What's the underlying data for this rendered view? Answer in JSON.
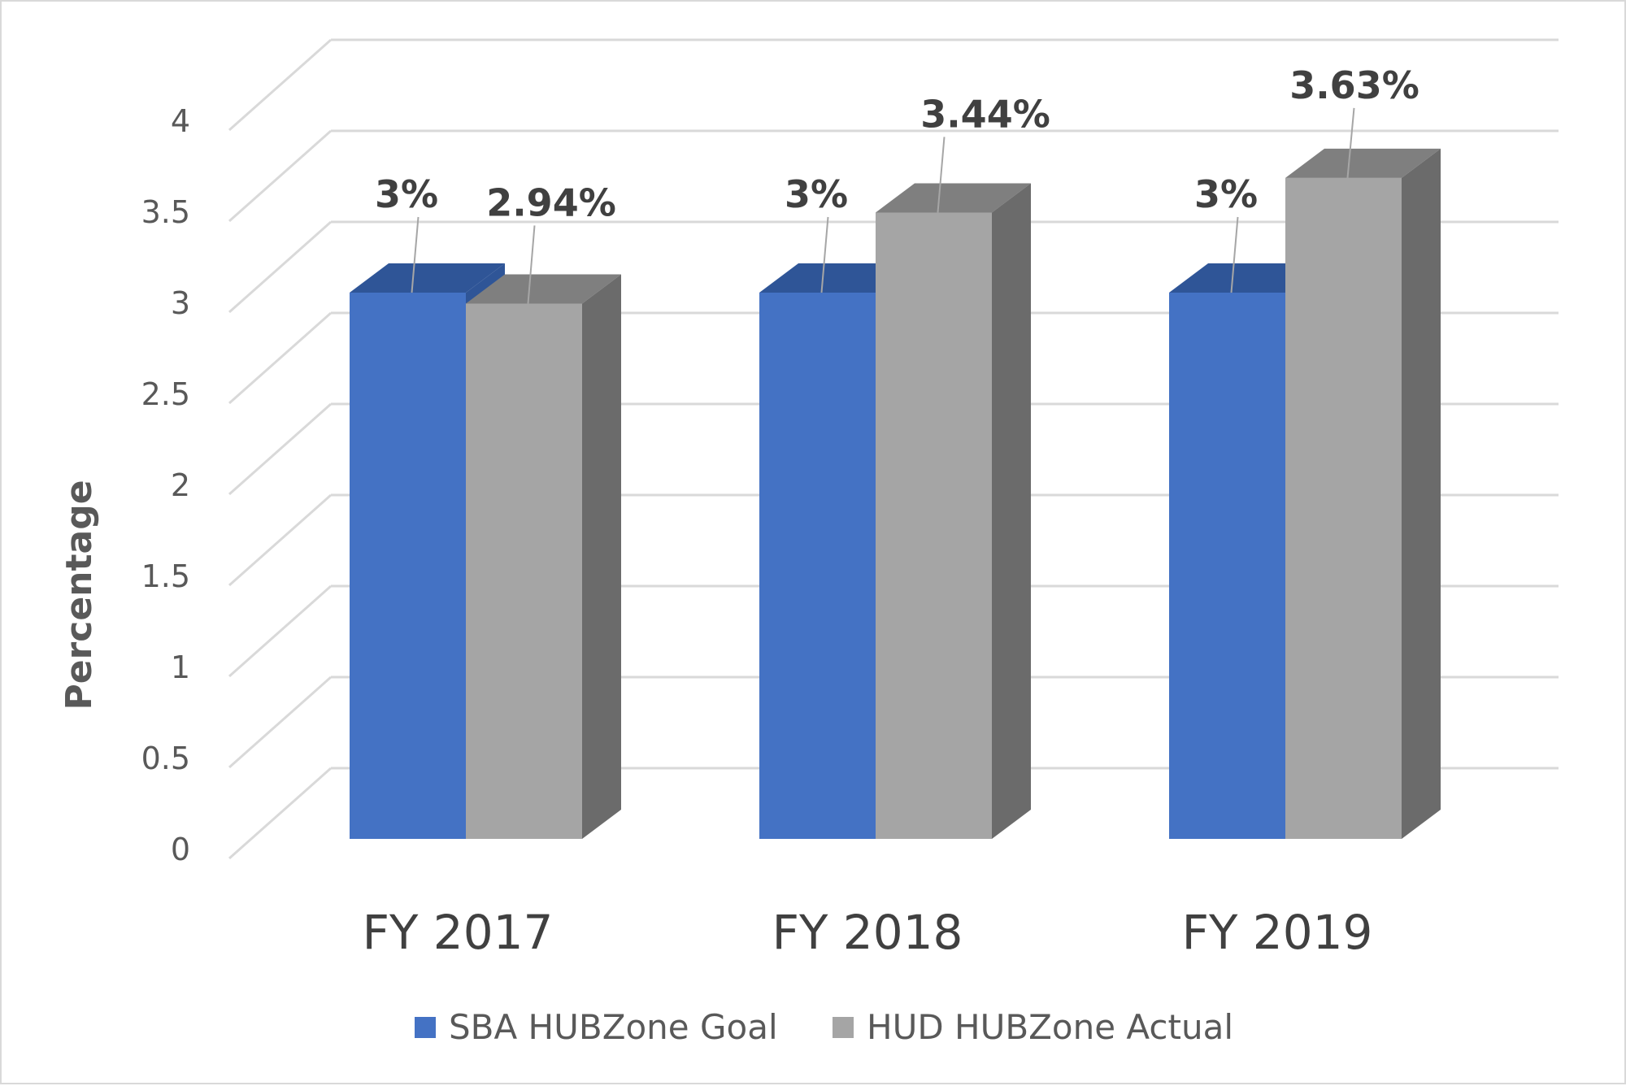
{
  "chart_data": {
    "type": "bar",
    "style": "3d-clustered-column",
    "categories": [
      "FY 2017",
      "FY 2018",
      "FY 2019"
    ],
    "series": [
      {
        "name": "SBA HUBZone Goal",
        "values": [
          3,
          3,
          3
        ],
        "data_labels": [
          "3%",
          "3%",
          "3%"
        ],
        "color": "#4472c4",
        "top_color": "#2f5597",
        "side_color": "#2f5597"
      },
      {
        "name": "HUD HUBZone Actual",
        "values": [
          2.94,
          3.44,
          3.63
        ],
        "data_labels": [
          "2.94%",
          "3.44%",
          "3.63%"
        ],
        "color": "#a5a5a5",
        "top_color": "#7f7f7f",
        "side_color": "#6b6b6b"
      }
    ],
    "title": "",
    "xlabel": "",
    "ylabel": "Percentage",
    "ylim": [
      0,
      4
    ],
    "yticks": [
      "0",
      "0.5",
      "1",
      "1.5",
      "2",
      "2.5",
      "3",
      "3.5",
      "4"
    ],
    "grid": true,
    "legend_position": "bottom"
  }
}
